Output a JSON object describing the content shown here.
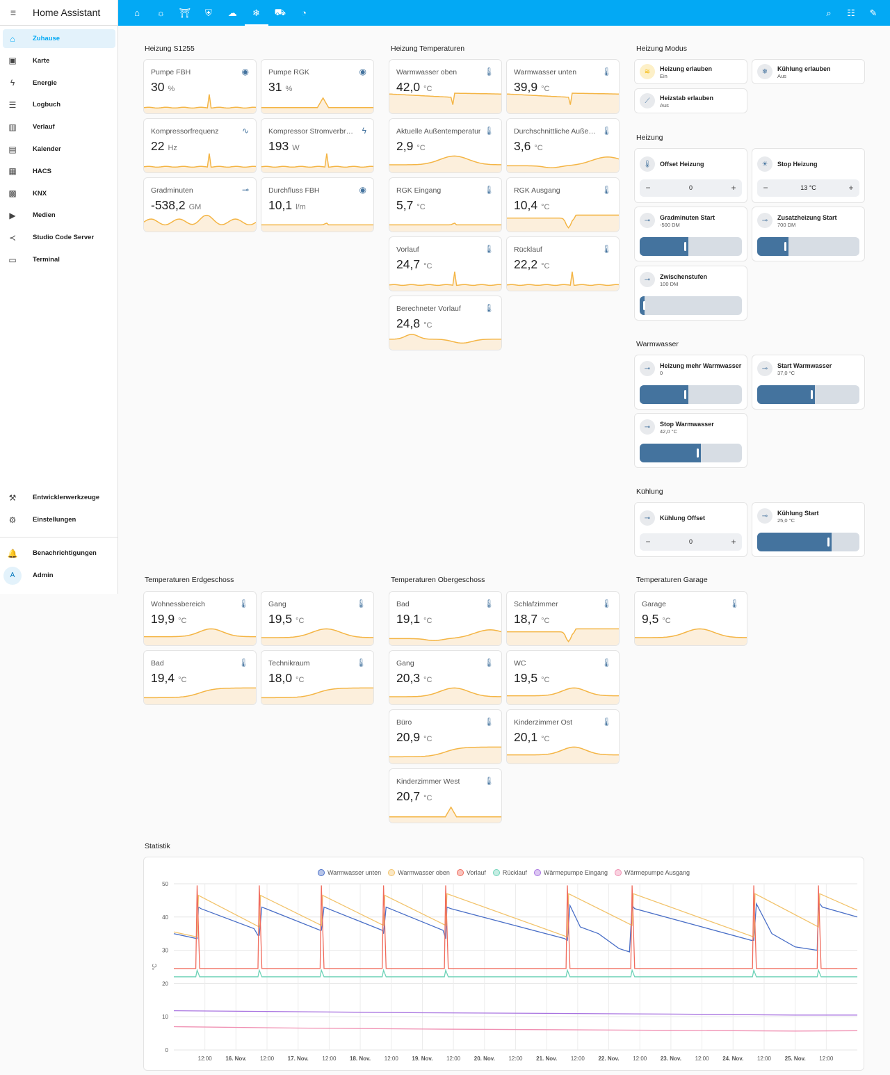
{
  "sidebar": {
    "title": "Home Assistant",
    "menu_icon": "menu-open-icon",
    "items": [
      {
        "label": "Zuhause",
        "icon": "home-icon",
        "glyph": "⌂",
        "active": true
      },
      {
        "label": "Karte",
        "icon": "map-icon",
        "glyph": "▣"
      },
      {
        "label": "Energie",
        "icon": "lightning-icon",
        "glyph": "ϟ"
      },
      {
        "label": "Logbuch",
        "icon": "list-icon",
        "glyph": "☰"
      },
      {
        "label": "Verlauf",
        "icon": "chart-box-icon",
        "glyph": "▥"
      },
      {
        "label": "Kalender",
        "icon": "calendar-icon",
        "glyph": "▤"
      },
      {
        "label": "HACS",
        "icon": "store-icon",
        "glyph": "▦"
      },
      {
        "label": "KNX",
        "icon": "train-icon",
        "glyph": "▩"
      },
      {
        "label": "Medien",
        "icon": "media-icon",
        "glyph": "▶"
      },
      {
        "label": "Studio Code Server",
        "icon": "vscode-icon",
        "glyph": "≺"
      },
      {
        "label": "Terminal",
        "icon": "terminal-icon",
        "glyph": "▭"
      }
    ],
    "bottom_items": [
      {
        "label": "Entwicklerwerkzeuge",
        "icon": "hammer-icon",
        "glyph": "⚒"
      },
      {
        "label": "Einstellungen",
        "icon": "gear-icon",
        "glyph": "⚙"
      }
    ],
    "notifications": {
      "label": "Benachrichtigungen",
      "icon": "bell-icon",
      "glyph": "🔔"
    },
    "user": {
      "label": "Admin",
      "avatar": "A"
    }
  },
  "topbar": {
    "tabs": [
      {
        "icon": "home-outline-icon",
        "glyph": "⌂"
      },
      {
        "icon": "lightbulb-icon",
        "glyph": "☼"
      },
      {
        "icon": "gate-icon",
        "glyph": "⛩"
      },
      {
        "icon": "shield-icon",
        "glyph": "⛨"
      },
      {
        "icon": "weather-icon",
        "glyph": "☁"
      },
      {
        "icon": "heat-pump-icon",
        "glyph": "❄",
        "active": true
      },
      {
        "icon": "car-icon",
        "glyph": "⛟"
      },
      {
        "icon": "cctv-icon",
        "glyph": "◔"
      }
    ],
    "actions": [
      {
        "icon": "search-icon",
        "glyph": "⌕"
      },
      {
        "icon": "assist-icon",
        "glyph": "☷"
      },
      {
        "icon": "pencil-icon",
        "glyph": "✎"
      }
    ]
  },
  "colors": {
    "accent": "#03a9f4",
    "spark_line": "#f4b545",
    "spark_fill": "#fcefdc",
    "icon": "#44739e"
  },
  "sections": {
    "heizung_s1255": {
      "title": "Heizung S1255",
      "cards": [
        {
          "name": "Pumpe FBH",
          "value": "30",
          "unit": "%",
          "icon": "eye-icon",
          "glyph": "◉"
        },
        {
          "name": "Pumpe RGK",
          "value": "31",
          "unit": "%",
          "icon": "eye-icon",
          "glyph": "◉"
        },
        {
          "name": "Kompressorfrequenz",
          "value": "22",
          "unit": "Hz",
          "icon": "sine-wave-icon",
          "glyph": "∿"
        },
        {
          "name": "Kompressor Stromverbrauch",
          "value": "193",
          "unit": "W",
          "icon": "flash-icon",
          "glyph": "ϟ"
        },
        {
          "name": "Gradminuten",
          "value": "-538,2",
          "unit": "GM",
          "icon": "slider-icon",
          "glyph": "⊸"
        },
        {
          "name": "Durchfluss FBH",
          "value": "10,1",
          "unit": "l/m",
          "icon": "eye-icon",
          "glyph": "◉"
        }
      ]
    },
    "heizung_temperaturen": {
      "title": "Heizung Temperaturen",
      "cards": [
        {
          "name": "Warmwasser oben",
          "value": "42,0",
          "unit": "°C",
          "icon": "thermometer-icon",
          "glyph": "🌡"
        },
        {
          "name": "Warmwasser unten",
          "value": "39,9",
          "unit": "°C",
          "icon": "thermometer-icon",
          "glyph": "🌡"
        },
        {
          "name": "Aktuelle Außentemperatur",
          "value": "2,9",
          "unit": "°C",
          "icon": "thermometer-icon",
          "glyph": "🌡"
        },
        {
          "name": "Durchschnittliche Außentemperatur",
          "value": "3,6",
          "unit": "°C",
          "icon": "thermometer-icon",
          "glyph": "🌡"
        },
        {
          "name": "RGK Eingang",
          "value": "5,7",
          "unit": "°C",
          "icon": "thermometer-icon",
          "glyph": "🌡"
        },
        {
          "name": "RGK Ausgang",
          "value": "10,4",
          "unit": "°C",
          "icon": "thermometer-icon",
          "glyph": "🌡"
        },
        {
          "name": "Vorlauf",
          "value": "24,7",
          "unit": "°C",
          "icon": "thermometer-icon",
          "glyph": "🌡"
        },
        {
          "name": "Rücklauf",
          "value": "22,2",
          "unit": "°C",
          "icon": "thermometer-icon",
          "glyph": "🌡"
        },
        {
          "name": "Berechneter Vorlauf",
          "value": "24,8",
          "unit": "°C",
          "icon": "thermometer-icon",
          "glyph": "🌡"
        }
      ]
    },
    "heizung_modus": {
      "title": "Heizung Modus",
      "tiles": [
        {
          "name": "Heizung erlauben",
          "state": "Ein",
          "icon": "heat-wave-icon",
          "glyph": "≋"
        },
        {
          "name": "Kühlung erlauben",
          "state": "Aus",
          "icon": "snowflake-icon",
          "glyph": "❄"
        },
        {
          "name": "Heizstab erlauben",
          "state": "Aus",
          "icon": "heating-rod-icon",
          "glyph": "⟋"
        }
      ]
    },
    "heizung": {
      "title": "Heizung",
      "numbers": [
        {
          "name": "Offset Heizung",
          "value": "0",
          "icon": "thermometer-plus-icon",
          "glyph": "🌡"
        },
        {
          "name": "Stop Heizung",
          "value": "13 °C",
          "icon": "sun-thermometer-icon",
          "glyph": "☀"
        }
      ],
      "sliders": [
        {
          "name": "Gradminuten Start",
          "state": "-500 DM",
          "level": 0.47
        },
        {
          "name": "Zusatzheizung Start",
          "state": "700 DM",
          "level": 0.3
        },
        {
          "name": "Zwischenstufen",
          "state": "100 DM",
          "level": 0.05
        }
      ]
    },
    "warmwasser": {
      "title": "Warmwasser",
      "sliders": [
        {
          "name": "Heizung mehr Warmwasser",
          "state": "0",
          "level": 0.47
        },
        {
          "name": "Start Warmwasser",
          "state": "37,0 °C",
          "level": 0.56
        },
        {
          "name": "Stop Warmwasser",
          "state": "42,0 °C",
          "level": 0.59
        }
      ]
    },
    "kuehlung": {
      "title": "Kühlung",
      "number": {
        "name": "Kühlung Offset",
        "value": "0"
      },
      "slider": {
        "name": "Kühlung Start",
        "state": "25,0 °C",
        "level": 0.72
      }
    },
    "temp_eg": {
      "title": "Temperaturen Erdgeschoss",
      "cards": [
        {
          "name": "Wohnessbereich",
          "value": "19,9",
          "unit": "°C",
          "icon": "thermometer-icon",
          "glyph": "🌡"
        },
        {
          "name": "Gang",
          "value": "19,5",
          "unit": "°C",
          "icon": "thermometer-icon",
          "glyph": "🌡"
        },
        {
          "name": "Bad",
          "value": "19,4",
          "unit": "°C",
          "icon": "thermometer-icon",
          "glyph": "🌡"
        },
        {
          "name": "Technikraum",
          "value": "18,0",
          "unit": "°C",
          "icon": "thermometer-icon",
          "glyph": "🌡"
        }
      ]
    },
    "temp_og": {
      "title": "Temperaturen Obergeschoss",
      "cards": [
        {
          "name": "Bad",
          "value": "19,1",
          "unit": "°C",
          "icon": "thermometer-icon",
          "glyph": "🌡"
        },
        {
          "name": "Schlafzimmer",
          "value": "18,7",
          "unit": "°C",
          "icon": "thermometer-icon",
          "glyph": "🌡"
        },
        {
          "name": "Gang",
          "value": "20,3",
          "unit": "°C",
          "icon": "thermometer-icon",
          "glyph": "🌡"
        },
        {
          "name": "WC",
          "value": "19,5",
          "unit": "°C",
          "icon": "thermometer-icon",
          "glyph": "🌡"
        },
        {
          "name": "Büro",
          "value": "20,9",
          "unit": "°C",
          "icon": "thermometer-icon",
          "glyph": "🌡"
        },
        {
          "name": "Kinderzimmer Ost",
          "value": "20,1",
          "unit": "°C",
          "icon": "thermometer-icon",
          "glyph": "🌡"
        },
        {
          "name": "Kinderzimmer West",
          "value": "20,7",
          "unit": "°C",
          "icon": "thermometer-icon",
          "glyph": "🌡"
        }
      ]
    },
    "temp_garage": {
      "title": "Temperaturen Garage",
      "cards": [
        {
          "name": "Garage",
          "value": "9,5",
          "unit": "°C",
          "icon": "thermometer-icon",
          "glyph": "🌡"
        }
      ]
    },
    "statistik": {
      "title": "Statistik"
    }
  },
  "chart_data": {
    "type": "line",
    "ylabel": "°C",
    "ylim": [
      0,
      50
    ],
    "yticks": [
      0,
      10,
      20,
      30,
      40,
      50
    ],
    "grid": true,
    "legend_position": "top",
    "xlim": [
      "2023-11-15T00:00",
      "2023-11-26T00:00"
    ],
    "x_tick_labels": [
      "12:00",
      "16. Nov.",
      "12:00",
      "17. Nov.",
      "12:00",
      "18. Nov.",
      "12:00",
      "19. Nov.",
      "12:00",
      "20. Nov.",
      "12:00",
      "21. Nov.",
      "12:00",
      "22. Nov.",
      "12:00",
      "23. Nov.",
      "12:00",
      "24. Nov.",
      "12:00",
      "25. Nov.",
      "12:00"
    ],
    "series": [
      {
        "name": "Warmwasser unten",
        "color": "#4a6fc7",
        "x": [
          "2023-11-15T00:00",
          "2023-11-15T09:00",
          "2023-11-15T09:30",
          "2023-11-15T10:30",
          "2023-11-16T07:00",
          "2023-11-16T08:30",
          "2023-11-16T09:00",
          "2023-11-16T10:00",
          "2023-11-17T08:30",
          "2023-11-17T09:00",
          "2023-11-17T10:00",
          "2023-11-18T08:30",
          "2023-11-18T09:00",
          "2023-11-18T10:00",
          "2023-11-19T08:00",
          "2023-11-19T09:00",
          "2023-11-19T09:30",
          "2023-11-19T11:00",
          "2023-11-21T07:00",
          "2023-11-21T08:00",
          "2023-11-21T09:00",
          "2023-11-21T13:00",
          "2023-11-21T20:00",
          "2023-11-22T04:00",
          "2023-11-22T08:00",
          "2023-11-22T09:00",
          "2023-11-22T10:00",
          "2023-11-24T07:00",
          "2023-11-24T08:00",
          "2023-11-24T09:00",
          "2023-11-24T15:00",
          "2023-11-25T00:00",
          "2023-11-25T08:30",
          "2023-11-25T09:00",
          "2023-11-25T10:30",
          "2023-11-26T00:00"
        ],
        "values": [
          35,
          33.5,
          43,
          42.5,
          36.5,
          34.5,
          34.5,
          43,
          36,
          36,
          43,
          36,
          35,
          43,
          36,
          33.5,
          43,
          42.5,
          33.5,
          33,
          43.5,
          37,
          35,
          30.5,
          29.5,
          43.5,
          42.5,
          33,
          33,
          44,
          35,
          31,
          30,
          44.5,
          43,
          40
        ]
      },
      {
        "name": "Warmwasser oben",
        "color": "#f2c36b",
        "x": [
          "2023-11-15T00:00",
          "2023-11-15T09:00",
          "2023-11-15T09:30",
          "2023-11-16T09:00",
          "2023-11-16T09:30",
          "2023-11-17T09:00",
          "2023-11-17T09:30",
          "2023-11-18T09:00",
          "2023-11-18T09:30",
          "2023-11-19T09:00",
          "2023-11-19T09:30",
          "2023-11-21T08:00",
          "2023-11-21T08:30",
          "2023-11-22T09:00",
          "2023-11-22T09:30",
          "2023-11-24T08:00",
          "2023-11-24T08:30",
          "2023-11-25T09:00",
          "2023-11-25T09:30",
          "2023-11-26T00:00"
        ],
        "values": [
          35.5,
          34,
          46.5,
          37,
          46.5,
          37.5,
          46.5,
          37.5,
          46.5,
          37.5,
          47,
          34,
          47,
          37.5,
          47,
          34,
          47,
          37,
          47,
          42
        ]
      },
      {
        "name": "Vorlauf",
        "color": "#f06b5c",
        "x": [
          "2023-11-15T00:00",
          "2023-11-15T08:30",
          "2023-11-15T09:00",
          "2023-11-15T10:00",
          "2023-11-16T08:30",
          "2023-11-16T09:00",
          "2023-11-16T10:00",
          "2023-11-17T08:30",
          "2023-11-17T09:00",
          "2023-11-17T10:00",
          "2023-11-18T08:30",
          "2023-11-18T09:00",
          "2023-11-18T10:00",
          "2023-11-19T08:30",
          "2023-11-19T09:00",
          "2023-11-19T10:00",
          "2023-11-21T07:30",
          "2023-11-21T08:00",
          "2023-11-21T09:00",
          "2023-11-22T08:30",
          "2023-11-22T09:00",
          "2023-11-22T10:00",
          "2023-11-24T07:30",
          "2023-11-24T08:00",
          "2023-11-24T09:00",
          "2023-11-25T08:30",
          "2023-11-25T09:00",
          "2023-11-25T10:00",
          "2023-11-26T00:00"
        ],
        "values": [
          24.5,
          24.5,
          49.5,
          24.5,
          24.5,
          49.5,
          24.5,
          24.5,
          49.5,
          24.5,
          24.5,
          49.5,
          24.5,
          24.5,
          49.5,
          24.5,
          24.5,
          49.5,
          24.5,
          24.5,
          49.5,
          24.5,
          24.5,
          49.5,
          24.5,
          24.5,
          49.5,
          24.5,
          24.5
        ]
      },
      {
        "name": "Rücklauf",
        "color": "#6fd3b8",
        "x": [
          "2023-11-15T00:00",
          "2023-11-15T08:30",
          "2023-11-15T09:00",
          "2023-11-15T10:00",
          "2023-11-16T08:30",
          "2023-11-16T09:00",
          "2023-11-16T10:00",
          "2023-11-17T08:30",
          "2023-11-17T09:00",
          "2023-11-17T10:00",
          "2023-11-18T08:30",
          "2023-11-18T09:00",
          "2023-11-18T10:00",
          "2023-11-19T08:30",
          "2023-11-19T09:00",
          "2023-11-19T10:00",
          "2023-11-21T07:30",
          "2023-11-21T08:00",
          "2023-11-21T09:00",
          "2023-11-22T08:30",
          "2023-11-22T09:00",
          "2023-11-22T10:00",
          "2023-11-24T07:30",
          "2023-11-24T08:00",
          "2023-11-24T09:00",
          "2023-11-25T08:30",
          "2023-11-25T09:00",
          "2023-11-25T10:00",
          "2023-11-26T00:00"
        ],
        "values": [
          22,
          22,
          24,
          22,
          22,
          24,
          22,
          22,
          24,
          22,
          22,
          24,
          22,
          22,
          24,
          22,
          22,
          24,
          22,
          22,
          24,
          22,
          22,
          24,
          22,
          22,
          24,
          22,
          22
        ]
      },
      {
        "name": "Wärmepumpe Eingang",
        "color": "#a873e0",
        "x": [
          "2023-11-15T00:00",
          "2023-11-17T00:00",
          "2023-11-19T00:00",
          "2023-11-21T00:00",
          "2023-11-23T00:00",
          "2023-11-25T00:00",
          "2023-11-26T00:00"
        ],
        "values": [
          11.8,
          11.5,
          11.2,
          11,
          10.8,
          10.5,
          10.5
        ]
      },
      {
        "name": "Wärmepumpe Ausgang",
        "color": "#f08fb2",
        "x": [
          "2023-11-15T00:00",
          "2023-11-17T00:00",
          "2023-11-19T00:00",
          "2023-11-21T00:00",
          "2023-11-23T00:00",
          "2023-11-25T00:00",
          "2023-11-26T00:00"
        ],
        "values": [
          7,
          6.6,
          6.3,
          6.1,
          5.9,
          5.7,
          5.8
        ]
      }
    ]
  }
}
